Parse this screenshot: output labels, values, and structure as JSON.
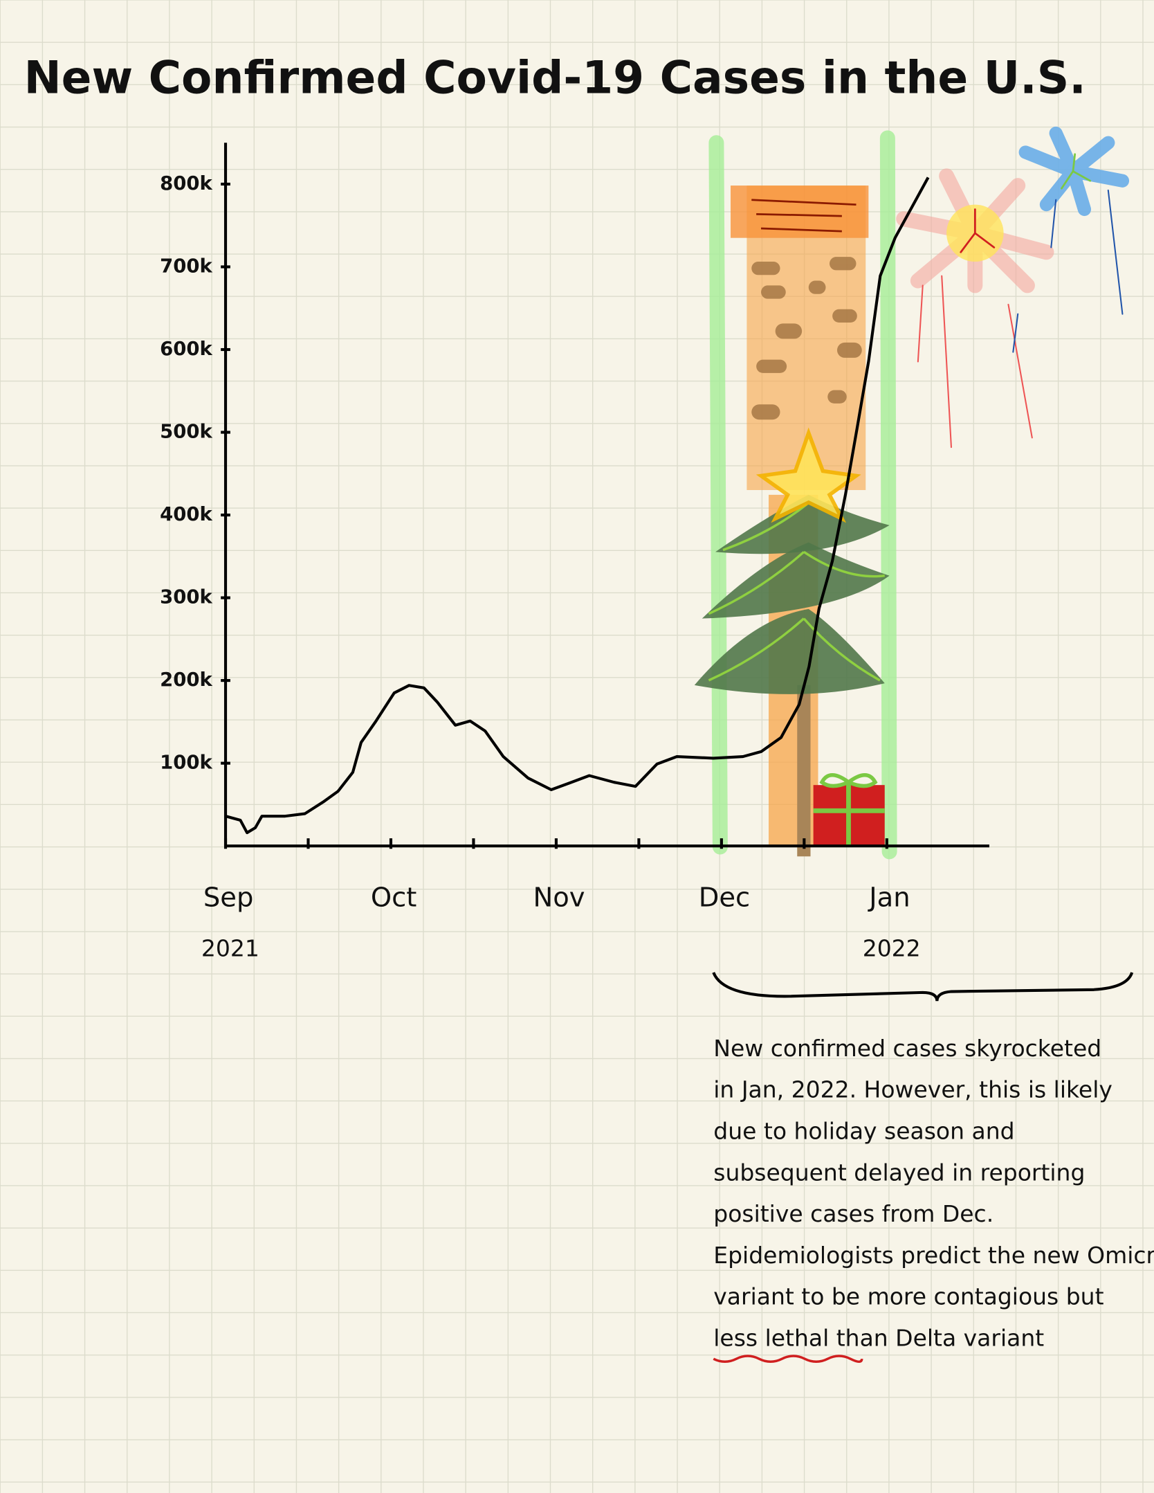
{
  "chart_data": {
    "type": "line",
    "title": "New Confirmed Covid-19 Cases in the U.S.",
    "x": [
      0,
      0.09,
      0.13,
      0.18,
      0.22,
      0.36,
      0.48,
      0.59,
      0.68,
      0.77,
      0.82,
      0.91,
      1.02,
      1.11,
      1.2,
      1.28,
      1.39,
      1.48,
      1.57,
      1.68,
      1.83,
      1.97,
      2.08,
      2.2,
      2.35,
      2.48,
      2.61,
      2.73,
      2.95,
      3.13,
      3.24,
      3.36,
      3.47,
      3.53,
      3.59,
      3.67,
      3.75,
      3.82,
      3.89,
      3.96,
      4.05,
      4.25
    ],
    "values": [
      36000,
      31000,
      16000,
      22000,
      36000,
      36000,
      39000,
      53000,
      66000,
      89000,
      125000,
      151000,
      185000,
      194000,
      191000,
      174000,
      146000,
      151000,
      139000,
      108000,
      82000,
      68000,
      76000,
      85000,
      77000,
      72000,
      99000,
      108000,
      106000,
      108000,
      114000,
      131000,
      171000,
      217000,
      287000,
      344000,
      425000,
      505000,
      586000,
      689000,
      735000,
      808000
    ],
    "color": "#000000",
    "xlim": [
      0,
      4.62
    ],
    "xticks": [
      {
        "value": 0,
        "label": "Sep",
        "sublabel": "2021"
      },
      {
        "value": 1,
        "label": "Oct"
      },
      {
        "value": 2,
        "label": "Nov"
      },
      {
        "value": 3,
        "label": "Dec"
      },
      {
        "value": 4,
        "label": "Jan",
        "sublabel": "2022"
      }
    ],
    "xminorticks": [
      0.5,
      1.5,
      2.5,
      3.5
    ],
    "ylim": [
      0,
      850000
    ],
    "yticks": [
      {
        "value": 100000,
        "label": "100k"
      },
      {
        "value": 200000,
        "label": "200k"
      },
      {
        "value": 300000,
        "label": "300k"
      },
      {
        "value": 400000,
        "label": "400k"
      },
      {
        "value": 500000,
        "label": "500k"
      },
      {
        "value": 600000,
        "label": "600k"
      },
      {
        "value": 700000,
        "label": "700k"
      },
      {
        "value": 800000,
        "label": "800k"
      }
    ],
    "annotation": [
      "New confirmed cases skyrocketed",
      "in Jan, 2022. However, this is likely",
      "due to holiday season and",
      "subsequent delayed in reporting",
      "positive cases from Dec.",
      "Epidemiologists predict the new Omicron",
      "variant to be more contagious but",
      "less lethal than Delta variant"
    ]
  }
}
